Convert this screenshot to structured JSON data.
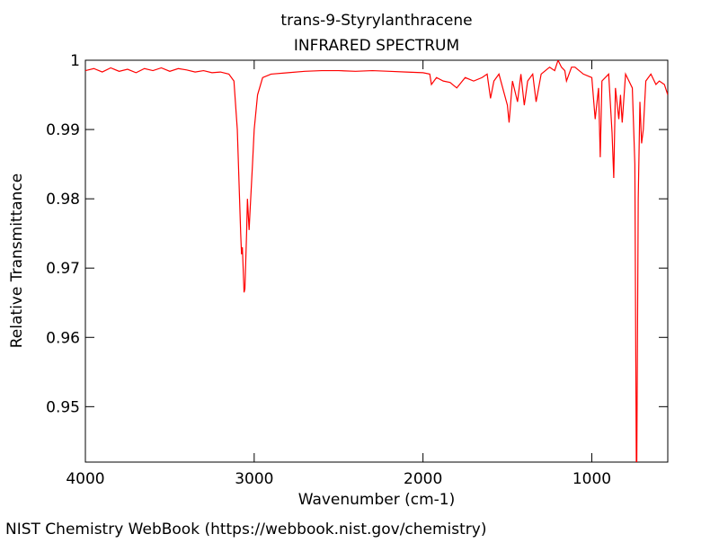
{
  "chart_data": {
    "type": "line",
    "title": "trans-9-Styrylanthracene",
    "subtitle": "INFRARED SPECTRUM",
    "x_label": "Wavenumber (cm-1)",
    "y_label": "Relative Transmittance",
    "footer": "NIST Chemistry WebBook (https://webbook.nist.gov/chemistry)",
    "x": [
      4000,
      3950,
      3900,
      3850,
      3800,
      3750,
      3700,
      3650,
      3600,
      3550,
      3500,
      3450,
      3400,
      3350,
      3300,
      3250,
      3200,
      3150,
      3120,
      3100,
      3080,
      3075,
      3070,
      3060,
      3055,
      3045,
      3040,
      3030,
      3025,
      3010,
      3000,
      2980,
      2950,
      2900,
      2800,
      2700,
      2600,
      2500,
      2400,
      2300,
      2200,
      2100,
      2000,
      1960,
      1950,
      1920,
      1880,
      1840,
      1800,
      1750,
      1700,
      1650,
      1620,
      1600,
      1580,
      1550,
      1500,
      1490,
      1470,
      1440,
      1420,
      1400,
      1380,
      1350,
      1330,
      1300,
      1250,
      1220,
      1200,
      1180,
      1160,
      1150,
      1120,
      1100,
      1050,
      1000,
      980,
      960,
      950,
      940,
      900,
      880,
      870,
      860,
      840,
      830,
      820,
      800,
      780,
      760,
      745,
      735,
      725,
      715,
      705,
      695,
      680,
      650,
      620,
      600,
      570,
      550
    ],
    "series": [
      {
        "name": "spectrum",
        "color": "#ff0000",
        "values": [
          0.9985,
          0.9988,
          0.9983,
          0.9989,
          0.9984,
          0.9987,
          0.9982,
          0.9988,
          0.9985,
          0.9989,
          0.9984,
          0.9988,
          0.9986,
          0.9983,
          0.9985,
          0.9982,
          0.9983,
          0.998,
          0.997,
          0.99,
          0.975,
          0.972,
          0.973,
          0.9665,
          0.967,
          0.975,
          0.98,
          0.9755,
          0.978,
          0.985,
          0.99,
          0.995,
          0.9975,
          0.998,
          0.9982,
          0.9984,
          0.9985,
          0.9985,
          0.9984,
          0.9985,
          0.9984,
          0.9983,
          0.9982,
          0.998,
          0.9965,
          0.9975,
          0.997,
          0.9968,
          0.996,
          0.9975,
          0.997,
          0.9975,
          0.998,
          0.9945,
          0.997,
          0.998,
          0.9935,
          0.991,
          0.997,
          0.994,
          0.998,
          0.9935,
          0.997,
          0.998,
          0.994,
          0.998,
          0.999,
          0.9985,
          1.0,
          0.999,
          0.9985,
          0.997,
          0.999,
          0.999,
          0.998,
          0.9975,
          0.9915,
          0.996,
          0.986,
          0.997,
          0.998,
          0.9895,
          0.983,
          0.996,
          0.9915,
          0.995,
          0.991,
          0.998,
          0.997,
          0.996,
          0.985,
          0.935,
          0.98,
          0.994,
          0.988,
          0.99,
          0.997,
          0.998,
          0.9965,
          0.997,
          0.9965,
          0.995
        ]
      }
    ],
    "xlim": [
      4000,
      550
    ],
    "ylim": [
      0.942,
      1
    ],
    "xticks": [
      4000,
      3000,
      2000,
      1000
    ],
    "yticks": [
      0.95,
      0.96,
      0.97,
      0.98,
      0.99,
      1
    ]
  }
}
